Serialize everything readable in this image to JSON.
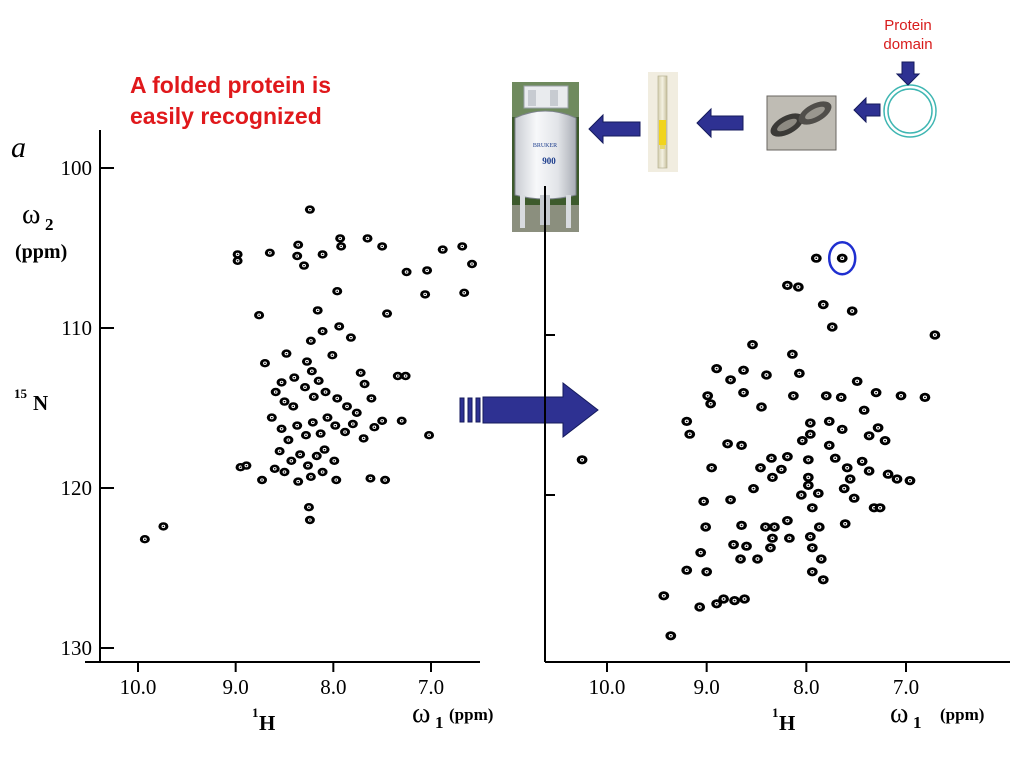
{
  "headline": {
    "line1": "A folded protein is",
    "line2": "easily recognized"
  },
  "workflow": {
    "domain_label_line1": "Protein",
    "domain_label_line2": "domain",
    "spectrometer_brand": "BRUKER",
    "spectrometer_model": "900",
    "arrow_color": "#2e3192",
    "circle_color": "#3fb6b2"
  },
  "transition_arrow_color": "#2e3192",
  "highlight_circle_color": "#1f2fd0",
  "chart_data": [
    {
      "type": "scatter",
      "panel_letter": "a",
      "title": "",
      "xlabel_symbol": "ω",
      "xlabel_sub": "1",
      "xlabel_unit": "(ppm)",
      "xlabel_nucleus_mass": "1",
      "xlabel_nucleus": "H",
      "ylabel_symbol": "ω",
      "ylabel_sub": "2",
      "ylabel_unit": "(ppm)",
      "ylabel_nucleus_mass": "15",
      "ylabel_nucleus": "N",
      "xlim": [
        10.5,
        6.4
      ],
      "ylim": [
        98,
        131
      ],
      "x_ticks": [
        10.0,
        9.0,
        8.0,
        7.0
      ],
      "x_tick_labels": [
        "10.0",
        "9.0",
        "8.0",
        "7.0"
      ],
      "y_ticks": [
        100,
        110,
        120,
        130
      ],
      "y_tick_labels": [
        "100",
        "110",
        "120",
        "130"
      ],
      "points": [
        [
          9.93,
          123.2
        ],
        [
          9.74,
          122.4
        ],
        [
          8.24,
          102.6
        ],
        [
          8.95,
          118.7
        ],
        [
          8.76,
          109.2
        ],
        [
          8.98,
          105.4
        ],
        [
          8.73,
          119.5
        ],
        [
          8.65,
          105.3
        ],
        [
          8.37,
          105.5
        ],
        [
          8.3,
          106.1
        ],
        [
          8.11,
          105.4
        ],
        [
          7.93,
          104.4
        ],
        [
          7.65,
          104.4
        ],
        [
          7.5,
          104.9
        ],
        [
          7.25,
          106.5
        ],
        [
          7.04,
          106.4
        ],
        [
          6.88,
          105.1
        ],
        [
          6.68,
          104.9
        ],
        [
          7.06,
          107.9
        ],
        [
          7.26,
          113.0
        ],
        [
          7.5,
          115.8
        ],
        [
          7.3,
          115.8
        ],
        [
          7.45,
          109.1
        ],
        [
          7.02,
          116.7
        ],
        [
          7.94,
          109.9
        ],
        [
          8.16,
          108.9
        ],
        [
          8.11,
          110.2
        ],
        [
          8.23,
          110.8
        ],
        [
          8.01,
          111.7
        ],
        [
          8.27,
          112.1
        ],
        [
          8.22,
          112.7
        ],
        [
          8.4,
          113.1
        ],
        [
          8.53,
          113.4
        ],
        [
          8.59,
          114.0
        ],
        [
          8.5,
          114.6
        ],
        [
          8.41,
          114.9
        ],
        [
          8.29,
          113.7
        ],
        [
          8.2,
          114.3
        ],
        [
          8.15,
          113.3
        ],
        [
          8.08,
          114.0
        ],
        [
          7.96,
          114.4
        ],
        [
          7.86,
          114.9
        ],
        [
          7.76,
          115.3
        ],
        [
          7.68,
          113.5
        ],
        [
          7.61,
          114.4
        ],
        [
          8.63,
          115.6
        ],
        [
          8.53,
          116.3
        ],
        [
          8.46,
          117.0
        ],
        [
          8.37,
          116.1
        ],
        [
          8.28,
          116.7
        ],
        [
          8.21,
          115.9
        ],
        [
          8.13,
          116.6
        ],
        [
          8.06,
          115.6
        ],
        [
          7.98,
          116.1
        ],
        [
          7.88,
          116.5
        ],
        [
          7.8,
          116.0
        ],
        [
          7.69,
          116.9
        ],
        [
          7.58,
          116.2
        ],
        [
          8.55,
          117.7
        ],
        [
          8.43,
          118.3
        ],
        [
          8.34,
          117.9
        ],
        [
          8.26,
          118.6
        ],
        [
          8.17,
          118.0
        ],
        [
          8.09,
          117.6
        ],
        [
          7.99,
          118.3
        ],
        [
          8.5,
          119.0
        ],
        [
          8.36,
          119.6
        ],
        [
          8.23,
          119.3
        ],
        [
          8.11,
          119.0
        ],
        [
          7.97,
          119.5
        ],
        [
          8.6,
          118.8
        ],
        [
          8.25,
          121.2
        ],
        [
          8.24,
          122.0
        ],
        [
          7.62,
          119.4
        ],
        [
          7.47,
          119.5
        ],
        [
          8.89,
          118.6
        ],
        [
          7.72,
          112.8
        ],
        [
          6.66,
          107.8
        ],
        [
          6.58,
          106.0
        ],
        [
          7.92,
          104.9
        ],
        [
          8.7,
          112.2
        ],
        [
          8.48,
          111.6
        ],
        [
          7.82,
          110.6
        ],
        [
          7.96,
          107.7
        ],
        [
          8.98,
          105.8
        ],
        [
          7.34,
          113.0
        ],
        [
          8.36,
          104.8
        ]
      ]
    },
    {
      "type": "scatter",
      "title": "",
      "xlabel_symbol": "ω",
      "xlabel_sub": "1",
      "xlabel_unit": "(ppm)",
      "xlabel_nucleus_mass": "1",
      "xlabel_nucleus": "H",
      "xlim": [
        10.55,
        6.0
      ],
      "ylim": [
        98,
        131
      ],
      "x_ticks": [
        10.0,
        9.0,
        8.0,
        7.0
      ],
      "x_tick_labels": [
        "10.0",
        "9.0",
        "8.0",
        "7.0"
      ],
      "y_ticks": [
        110,
        120
      ],
      "y_tick_labels": [],
      "highlighted_point": [
        7.64,
        105.2
      ],
      "points": [
        [
          7.64,
          105.2
        ],
        [
          7.9,
          105.2
        ],
        [
          8.08,
          107.0
        ],
        [
          8.19,
          106.9
        ],
        [
          7.83,
          108.1
        ],
        [
          7.54,
          108.5
        ],
        [
          7.74,
          109.5
        ],
        [
          6.71,
          110.0
        ],
        [
          8.54,
          110.6
        ],
        [
          8.14,
          111.2
        ],
        [
          8.9,
          112.1
        ],
        [
          8.63,
          112.2
        ],
        [
          8.4,
          112.5
        ],
        [
          8.07,
          112.4
        ],
        [
          8.76,
          112.8
        ],
        [
          7.49,
          112.9
        ],
        [
          7.3,
          113.6
        ],
        [
          8.99,
          113.8
        ],
        [
          8.63,
          113.6
        ],
        [
          8.13,
          113.8
        ],
        [
          7.8,
          113.8
        ],
        [
          7.65,
          113.9
        ],
        [
          7.05,
          113.8
        ],
        [
          6.81,
          113.9
        ],
        [
          8.96,
          114.3
        ],
        [
          8.45,
          114.5
        ],
        [
          7.42,
          114.7
        ],
        [
          9.2,
          115.4
        ],
        [
          7.96,
          115.5
        ],
        [
          7.77,
          115.4
        ],
        [
          7.64,
          115.9
        ],
        [
          7.28,
          115.8
        ],
        [
          9.17,
          116.2
        ],
        [
          8.79,
          116.8
        ],
        [
          8.65,
          116.9
        ],
        [
          8.04,
          116.6
        ],
        [
          7.96,
          116.2
        ],
        [
          7.77,
          116.9
        ],
        [
          7.37,
          116.3
        ],
        [
          7.21,
          116.6
        ],
        [
          10.25,
          117.8
        ],
        [
          8.35,
          117.7
        ],
        [
          8.19,
          117.6
        ],
        [
          7.98,
          117.8
        ],
        [
          7.71,
          117.7
        ],
        [
          7.44,
          117.9
        ],
        [
          8.95,
          118.3
        ],
        [
          8.46,
          118.3
        ],
        [
          8.25,
          118.4
        ],
        [
          7.59,
          118.3
        ],
        [
          7.37,
          118.5
        ],
        [
          7.18,
          118.7
        ],
        [
          8.34,
          118.9
        ],
        [
          7.98,
          118.9
        ],
        [
          7.56,
          119.0
        ],
        [
          7.09,
          119.0
        ],
        [
          6.96,
          119.1
        ],
        [
          8.53,
          119.6
        ],
        [
          7.98,
          119.4
        ],
        [
          7.62,
          119.6
        ],
        [
          9.03,
          120.4
        ],
        [
          8.76,
          120.3
        ],
        [
          8.05,
          120.0
        ],
        [
          7.88,
          119.9
        ],
        [
          7.52,
          120.2
        ],
        [
          7.32,
          120.8
        ],
        [
          7.26,
          120.8
        ],
        [
          7.94,
          120.8
        ],
        [
          9.01,
          122.0
        ],
        [
          8.65,
          121.9
        ],
        [
          8.41,
          122.0
        ],
        [
          8.32,
          122.0
        ],
        [
          8.19,
          121.6
        ],
        [
          7.87,
          122.0
        ],
        [
          7.61,
          121.8
        ],
        [
          8.34,
          122.7
        ],
        [
          8.17,
          122.7
        ],
        [
          7.96,
          122.6
        ],
        [
          8.73,
          123.1
        ],
        [
          8.6,
          123.2
        ],
        [
          8.36,
          123.3
        ],
        [
          7.94,
          123.3
        ],
        [
          9.06,
          123.6
        ],
        [
          8.66,
          124.0
        ],
        [
          8.49,
          124.0
        ],
        [
          7.85,
          124.0
        ],
        [
          9.2,
          124.7
        ],
        [
          9.0,
          124.8
        ],
        [
          7.94,
          124.8
        ],
        [
          7.83,
          125.3
        ],
        [
          9.43,
          126.3
        ],
        [
          8.83,
          126.5
        ],
        [
          8.72,
          126.6
        ],
        [
          8.62,
          126.5
        ],
        [
          8.9,
          126.8
        ],
        [
          9.07,
          127.0
        ],
        [
          9.36,
          128.8
        ]
      ]
    }
  ]
}
